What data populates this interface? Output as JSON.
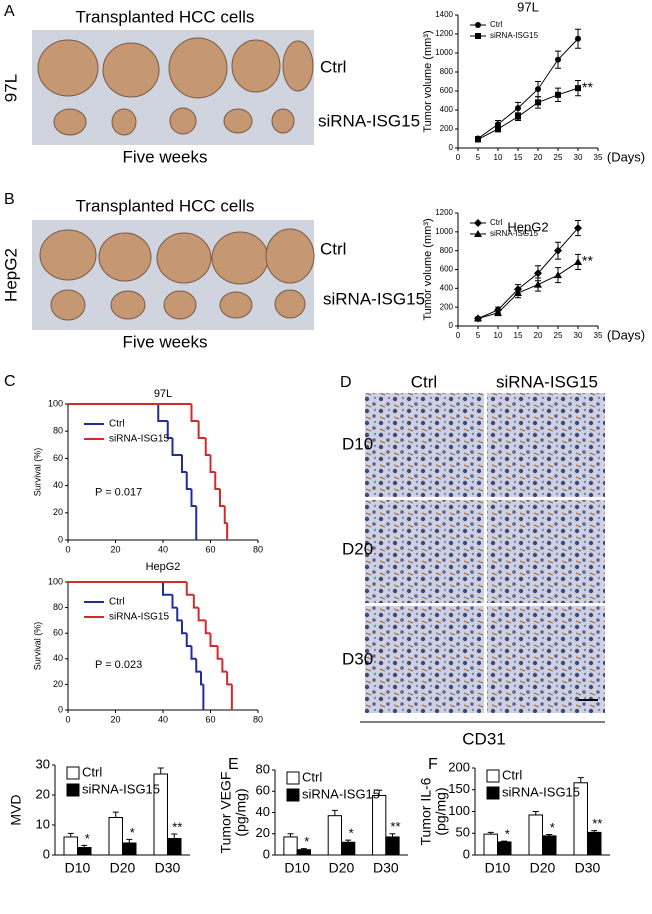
{
  "figure": {
    "panel_a": "A",
    "panel_b": "B",
    "panel_c": "C",
    "panel_d": "D",
    "panel_e": "E",
    "panel_f": "F",
    "a_photo_title": "Transplanted HCC cells",
    "a_cell_line": "97L",
    "a_ctrl": "Ctrl",
    "a_sirna": "siRNA-ISG15",
    "a_caption": "Five weeks",
    "b_photo_title": "Transplanted HCC cells",
    "b_cell_line": "HepG2",
    "b_ctrl": "Ctrl",
    "b_sirna": "siRNA-ISG15",
    "b_caption": "Five weeks",
    "d_col_ctrl": "Ctrl",
    "d_col_sirna": "siRNA-ISG15",
    "d_row_1": "D10",
    "d_row_2": "D20",
    "d_row_3": "D30",
    "d_stain": "CD31"
  },
  "chart_data": [
    {
      "type": "line",
      "title": "97L",
      "x_label": "(Days)",
      "y_label": "Tumor volume (mm³)",
      "x": [
        5,
        10,
        15,
        20,
        25,
        30
      ],
      "xlim": [
        0,
        35
      ],
      "xticks": [
        0,
        5,
        10,
        15,
        20,
        25,
        30,
        35
      ],
      "ylim": [
        0,
        1400
      ],
      "yticks": [
        0,
        200,
        400,
        600,
        800,
        1000,
        1200,
        1400
      ],
      "legend": "upper left",
      "annotation": "**",
      "series": [
        {
          "name": "Ctrl",
          "color": "#000000",
          "marker": "circle",
          "values": [
            100,
            250,
            420,
            620,
            930,
            1150
          ],
          "errors": [
            20,
            40,
            60,
            80,
            90,
            100
          ]
        },
        {
          "name": "siRNA-ISG15",
          "color": "#000000",
          "marker": "square",
          "values": [
            90,
            200,
            330,
            480,
            560,
            630
          ],
          "errors": [
            15,
            30,
            40,
            60,
            70,
            80
          ]
        }
      ]
    },
    {
      "type": "line",
      "title": "HepG2",
      "x_label": "(Days)",
      "y_label": "Tumor volume (mm³)",
      "x": [
        5,
        10,
        15,
        20,
        25,
        30
      ],
      "xlim": [
        0,
        35
      ],
      "xticks": [
        0,
        5,
        10,
        15,
        20,
        25,
        30,
        35
      ],
      "ylim": [
        0,
        1200
      ],
      "yticks": [
        0,
        200,
        400,
        600,
        800,
        1000,
        1200
      ],
      "legend": "upper left",
      "annotation": "**",
      "series": [
        {
          "name": "Ctrl",
          "color": "#000000",
          "marker": "diamond",
          "values": [
            80,
            170,
            390,
            560,
            800,
            1040
          ],
          "errors": [
            15,
            30,
            50,
            80,
            90,
            80
          ]
        },
        {
          "name": "siRNA-ISG15",
          "color": "#000000",
          "marker": "triangle",
          "values": [
            80,
            140,
            350,
            440,
            540,
            680
          ],
          "errors": [
            15,
            30,
            50,
            70,
            80,
            80
          ]
        }
      ]
    },
    {
      "type": "step",
      "title": "97L",
      "y_label": "Survival (%)",
      "xlim": [
        0,
        80
      ],
      "xticks": [
        0,
        20,
        40,
        60,
        80
      ],
      "ylim": [
        0,
        100
      ],
      "yticks": [
        0,
        20,
        40,
        60,
        80,
        100
      ],
      "legend": "upper left",
      "annotation": "P = 0.017",
      "series": [
        {
          "name": "Ctrl",
          "color": "#1f2d9e",
          "x": [
            0,
            38,
            42,
            44,
            48,
            50,
            52,
            54
          ],
          "values": [
            100,
            87.5,
            75,
            62.5,
            50,
            37.5,
            25,
            0
          ]
        },
        {
          "name": "siRNA-ISG15",
          "color": "#d42a2a",
          "x": [
            0,
            52,
            55,
            58,
            60,
            62,
            64,
            66,
            67
          ],
          "values": [
            100,
            87.5,
            75,
            62.5,
            50,
            37.5,
            25,
            12.5,
            0
          ]
        }
      ]
    },
    {
      "type": "step",
      "title": "HepG2",
      "y_label": "Survival (%)",
      "xlim": [
        0,
        80
      ],
      "xticks": [
        0,
        20,
        40,
        60,
        80
      ],
      "ylim": [
        0,
        100
      ],
      "yticks": [
        0,
        20,
        40,
        60,
        80,
        100
      ],
      "legend": "upper left",
      "annotation": "P = 0.023",
      "series": [
        {
          "name": "Ctrl",
          "color": "#1f2d9e",
          "x": [
            0,
            40,
            44,
            46,
            48,
            50,
            52,
            54,
            56,
            57
          ],
          "values": [
            100,
            90,
            80,
            70,
            60,
            50,
            40,
            30,
            20,
            0
          ]
        },
        {
          "name": "siRNA-ISG15",
          "color": "#d42a2a",
          "x": [
            0,
            50,
            53,
            55,
            58,
            60,
            63,
            65,
            67,
            69
          ],
          "values": [
            100,
            90,
            80,
            70,
            60,
            50,
            40,
            30,
            20,
            0
          ]
        }
      ]
    },
    {
      "type": "bar",
      "y_label": [
        "MVD"
      ],
      "categories": [
        "D10",
        "D20",
        "D30"
      ],
      "ylim": [
        0,
        30
      ],
      "yticks": [
        0,
        10,
        20,
        30
      ],
      "legend": "upper left",
      "annotations": [
        "*",
        "*",
        "**"
      ],
      "series": [
        {
          "name": "Ctrl",
          "color": "#ffffff",
          "values": [
            6,
            12.5,
            27
          ],
          "errors": [
            1.2,
            1.8,
            2
          ]
        },
        {
          "name": "siRNA-ISG15",
          "color": "#000000",
          "values": [
            2.5,
            4,
            5.5
          ],
          "errors": [
            0.7,
            1.2,
            1.5
          ]
        }
      ]
    },
    {
      "type": "bar",
      "y_label": [
        "Tumor VEGF",
        "(pg/mg)"
      ],
      "categories": [
        "D10",
        "D20",
        "D30"
      ],
      "ylim": [
        0,
        80
      ],
      "yticks": [
        0,
        20,
        40,
        60,
        80
      ],
      "legend": "upper left",
      "annotations": [
        "*",
        "*",
        "**"
      ],
      "series": [
        {
          "name": "Ctrl",
          "color": "#ffffff",
          "values": [
            17,
            37,
            56
          ],
          "errors": [
            3,
            5,
            5
          ]
        },
        {
          "name": "siRNA-ISG15",
          "color": "#000000",
          "values": [
            5,
            12,
            17
          ],
          "errors": [
            1,
            2,
            3
          ]
        }
      ]
    },
    {
      "type": "bar",
      "y_label": [
        "Tumor IL-6",
        "(pg/mg)"
      ],
      "categories": [
        "D10",
        "D20",
        "D30"
      ],
      "ylim": [
        0,
        200
      ],
      "yticks": [
        0,
        50,
        100,
        150,
        200
      ],
      "legend": "upper left",
      "annotations": [
        "*",
        "*",
        "**"
      ],
      "series": [
        {
          "name": "Ctrl",
          "color": "#ffffff",
          "values": [
            48,
            92,
            166
          ],
          "errors": [
            4,
            8,
            12
          ]
        },
        {
          "name": "siRNA-ISG15",
          "color": "#000000",
          "values": [
            30,
            44,
            52
          ],
          "errors": [
            2,
            3,
            4
          ]
        }
      ]
    }
  ]
}
